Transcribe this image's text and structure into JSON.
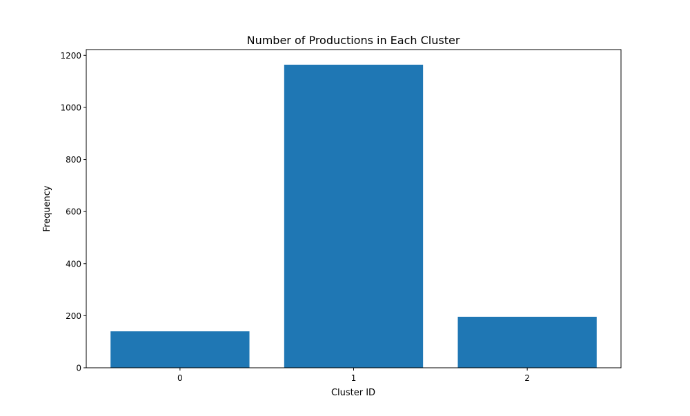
{
  "chart_data": {
    "type": "bar",
    "title": "Number of Productions in Each Cluster",
    "xlabel": "Cluster ID",
    "ylabel": "Frequency",
    "categories": [
      "0",
      "1",
      "2"
    ],
    "values": [
      140,
      1164,
      196
    ],
    "ylim": [
      0,
      1222
    ],
    "yticks": [
      0,
      200,
      400,
      600,
      800,
      1000,
      1200
    ],
    "grid": false,
    "legend": "none",
    "bar_color": "#1f77b4"
  }
}
